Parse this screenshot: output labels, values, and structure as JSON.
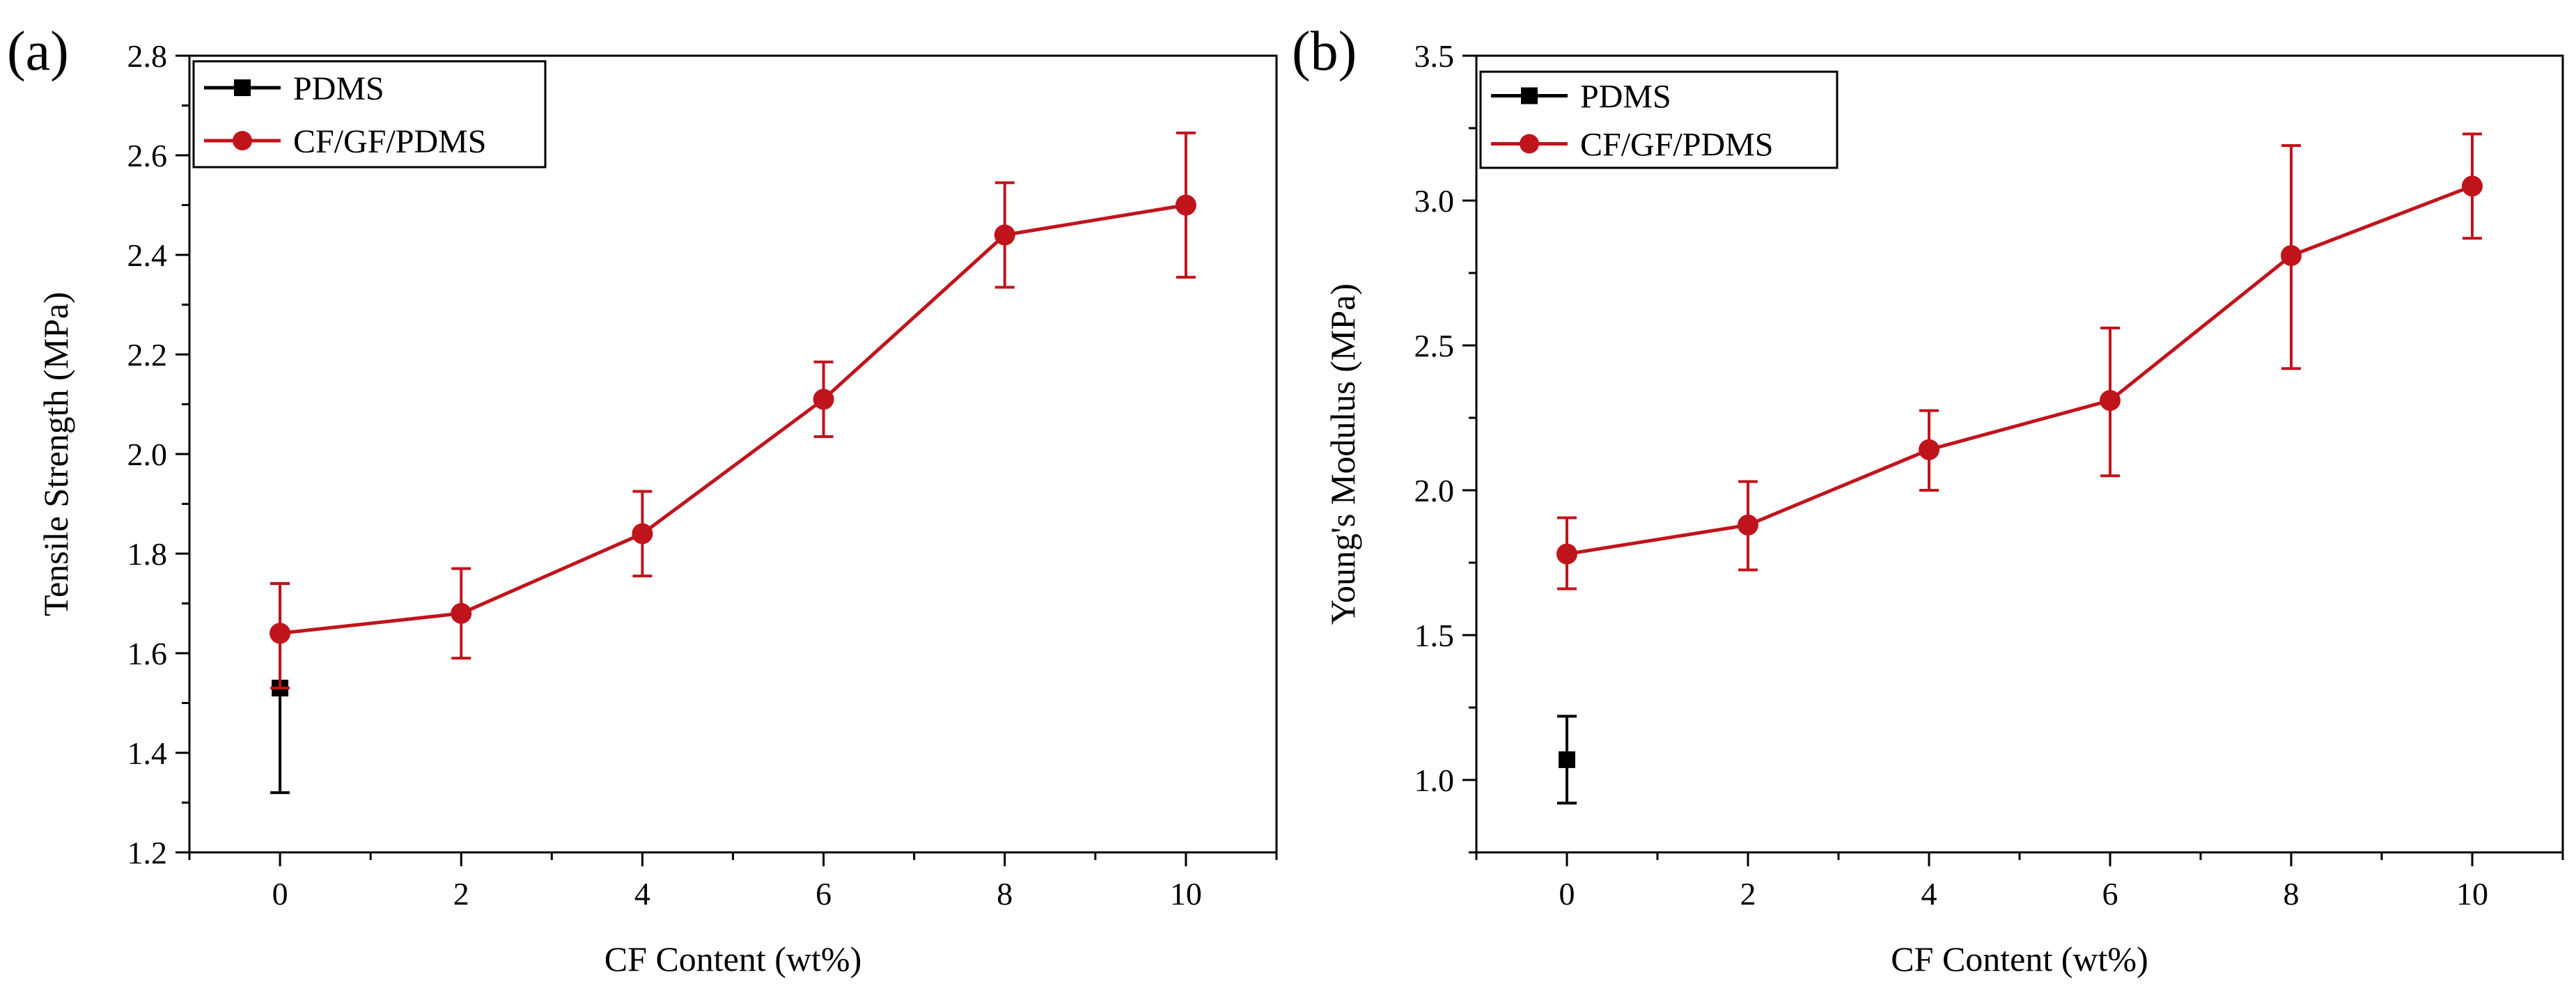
{
  "chart_data": [
    {
      "panel_label": "(a)",
      "type": "line",
      "xlabel": "CF Content (wt%)",
      "ylabel": "Tensile Strength (MPa)",
      "xlim": [
        -1,
        11
      ],
      "ylim": [
        1.2,
        2.8
      ],
      "xticks": [
        0,
        2,
        4,
        6,
        8,
        10
      ],
      "yticks": [
        1.2,
        1.4,
        1.6,
        1.8,
        2.0,
        2.2,
        2.4,
        2.6,
        2.8
      ],
      "xtick_labels": [
        "0",
        "2",
        "4",
        "6",
        "8",
        "10"
      ],
      "ytick_labels": [
        "1.2",
        "1.4",
        "1.6",
        "1.8",
        "2.0",
        "2.2",
        "2.4",
        "2.6",
        "2.8"
      ],
      "legend_position": "top-left",
      "series": [
        {
          "name": "PDMS",
          "color": "#000000",
          "marker": "square",
          "x": [
            0
          ],
          "y": [
            1.53
          ],
          "err_low": [
            1.32
          ],
          "err_high": [
            1.74
          ],
          "connect": false
        },
        {
          "name": "CF/GF/PDMS",
          "color": "#c0141c",
          "marker": "circle",
          "x": [
            0,
            2,
            4,
            6,
            8,
            10
          ],
          "y": [
            1.64,
            1.68,
            1.84,
            2.11,
            2.44,
            2.5
          ],
          "err_low": [
            1.53,
            1.59,
            1.755,
            2.035,
            2.335,
            2.355
          ],
          "err_high": [
            1.74,
            1.77,
            1.925,
            2.185,
            2.545,
            2.645
          ],
          "connect": true
        }
      ]
    },
    {
      "panel_label": "(b)",
      "type": "line",
      "xlabel": "CF Content (wt%)",
      "ylabel": "Young's Modulus (MPa)",
      "xlim": [
        -1,
        11
      ],
      "ylim": [
        0.75,
        3.5
      ],
      "xticks": [
        0,
        2,
        4,
        6,
        8,
        10
      ],
      "yticks": [
        1.0,
        1.5,
        2.0,
        2.5,
        3.0,
        3.5
      ],
      "xtick_labels": [
        "0",
        "2",
        "4",
        "6",
        "8",
        "10"
      ],
      "ytick_labels": [
        "1.0",
        "1.5",
        "2.0",
        "2.5",
        "3.0",
        "3.5"
      ],
      "legend_position": "top-left",
      "series": [
        {
          "name": "PDMS",
          "color": "#000000",
          "marker": "square",
          "x": [
            0
          ],
          "y": [
            1.07
          ],
          "err_low": [
            0.92
          ],
          "err_high": [
            1.22
          ],
          "connect": false
        },
        {
          "name": "CF/GF/PDMS",
          "color": "#c0141c",
          "marker": "circle",
          "x": [
            0,
            2,
            4,
            6,
            8,
            10
          ],
          "y": [
            1.78,
            1.88,
            2.14,
            2.31,
            2.81,
            3.05
          ],
          "err_low": [
            1.66,
            1.725,
            2.0,
            2.05,
            2.42,
            2.87
          ],
          "err_high": [
            1.905,
            2.03,
            2.275,
            2.56,
            3.19,
            3.23
          ],
          "connect": true
        }
      ]
    }
  ]
}
